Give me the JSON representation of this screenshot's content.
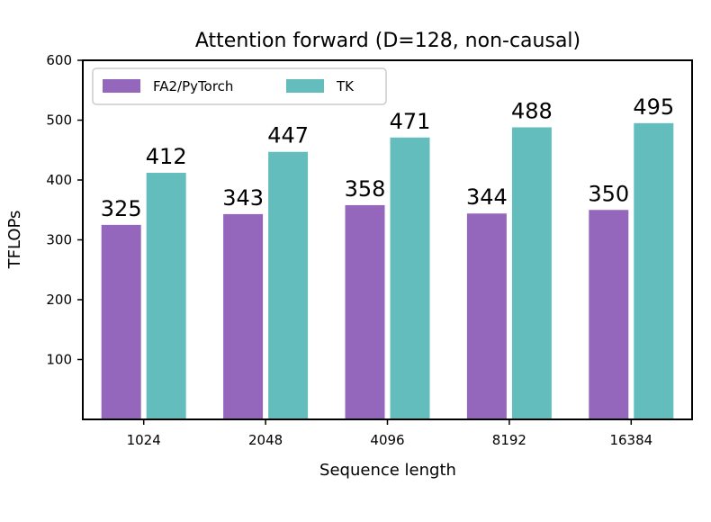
{
  "chart_data": {
    "type": "bar",
    "title": "Attention forward (D=128, non-causal)",
    "xlabel": "Sequence length",
    "ylabel": "TFLOPs",
    "categories": [
      "1024",
      "2048",
      "4096",
      "8192",
      "16384"
    ],
    "series": [
      {
        "name": "FA2/PyTorch",
        "values": [
          325,
          343,
          358,
          344,
          350
        ],
        "color": "#9467bd"
      },
      {
        "name": "TK",
        "values": [
          412,
          447,
          471,
          488,
          495
        ],
        "color": "#64bdbd"
      }
    ],
    "ylim": [
      0,
      600
    ],
    "yticks": [
      100,
      200,
      300,
      400,
      500,
      600
    ],
    "grid": false,
    "legend_position": "top-left",
    "data_labels": true
  }
}
